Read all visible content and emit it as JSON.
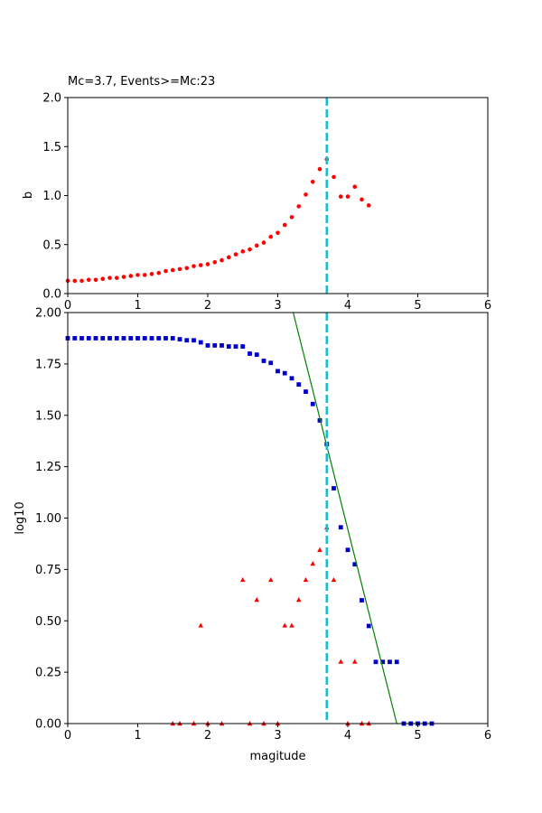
{
  "title": "Mc=3.7, Events>=Mc:23",
  "colors": {
    "b_points": "#ff0000",
    "cum_points": "#0000cc",
    "noncum_points": "#ff0000",
    "fit_line": "#008000",
    "mc_line": "#17becf"
  },
  "chart_data": [
    {
      "type": "scatter",
      "title": "Mc=3.7, Events>=Mc:23",
      "xlabel": "",
      "ylabel": "b",
      "xlim": [
        0,
        6
      ],
      "ylim": [
        0,
        2
      ],
      "xticks": [
        "0",
        "1",
        "2",
        "3",
        "4",
        "5",
        "6"
      ],
      "yticks": [
        "0.0",
        "0.5",
        "1.0",
        "1.5",
        "2.0"
      ],
      "mc": 3.7,
      "series": [
        {
          "marker": "circle",
          "x": [
            0.0,
            0.1,
            0.2,
            0.3,
            0.4,
            0.5,
            0.6,
            0.7,
            0.8,
            0.9,
            1.0,
            1.1,
            1.2,
            1.3,
            1.4,
            1.5,
            1.6,
            1.7,
            1.8,
            1.9,
            2.0,
            2.1,
            2.2,
            2.3,
            2.4,
            2.5,
            2.6,
            2.7,
            2.8,
            2.9,
            3.0,
            3.1,
            3.2,
            3.3,
            3.4,
            3.5,
            3.6,
            3.7,
            3.8,
            3.9,
            4.0,
            4.1,
            4.2,
            4.3
          ],
          "y": [
            0.13,
            0.13,
            0.13,
            0.14,
            0.14,
            0.15,
            0.16,
            0.16,
            0.17,
            0.18,
            0.19,
            0.19,
            0.2,
            0.21,
            0.23,
            0.24,
            0.25,
            0.26,
            0.28,
            0.29,
            0.3,
            0.32,
            0.34,
            0.37,
            0.4,
            0.43,
            0.45,
            0.49,
            0.52,
            0.58,
            0.62,
            0.7,
            0.78,
            0.89,
            1.01,
            1.14,
            1.27,
            1.37,
            1.19,
            0.99,
            0.99,
            1.09,
            0.96,
            0.9
          ]
        }
      ]
    },
    {
      "type": "scatter",
      "xlabel": "magitude",
      "ylabel": "log10",
      "xlim": [
        0,
        6
      ],
      "ylim": [
        0,
        2
      ],
      "xticks": [
        "0",
        "1",
        "2",
        "3",
        "4",
        "5",
        "6"
      ],
      "yticks": [
        "0.00",
        "0.25",
        "0.50",
        "0.75",
        "1.00",
        "1.25",
        "1.50",
        "1.75",
        "2.00"
      ],
      "mc": 3.7,
      "fit_line": {
        "x": [
          3.22,
          4.7
        ],
        "y": [
          2.0,
          0.0
        ]
      },
      "series": [
        {
          "marker": "square",
          "x": [
            0.0,
            0.1,
            0.2,
            0.3,
            0.4,
            0.5,
            0.6,
            0.7,
            0.8,
            0.9,
            1.0,
            1.1,
            1.2,
            1.3,
            1.4,
            1.5,
            1.6,
            1.7,
            1.8,
            1.9,
            2.0,
            2.1,
            2.2,
            2.3,
            2.4,
            2.5,
            2.6,
            2.7,
            2.8,
            2.9,
            3.0,
            3.1,
            3.2,
            3.3,
            3.4,
            3.5,
            3.6,
            3.7,
            3.8,
            3.9,
            4.0,
            4.1,
            4.2,
            4.3,
            4.4,
            4.5,
            4.6,
            4.7,
            4.8,
            4.9,
            5.0,
            5.1,
            5.2
          ],
          "y": [
            1.875,
            1.875,
            1.875,
            1.875,
            1.875,
            1.875,
            1.875,
            1.875,
            1.875,
            1.875,
            1.875,
            1.875,
            1.875,
            1.875,
            1.875,
            1.875,
            1.87,
            1.865,
            1.865,
            1.855,
            1.84,
            1.84,
            1.84,
            1.835,
            1.835,
            1.835,
            1.8,
            1.795,
            1.765,
            1.755,
            1.715,
            1.705,
            1.68,
            1.65,
            1.615,
            1.555,
            1.475,
            1.36,
            1.145,
            0.955,
            0.845,
            0.775,
            0.6,
            0.475,
            0.3,
            0.3,
            0.3,
            0.3,
            0.0,
            0.0,
            0.0,
            0.0,
            0.0
          ]
        },
        {
          "marker": "triangle",
          "x": [
            1.5,
            1.6,
            1.8,
            1.9,
            2.0,
            2.2,
            2.5,
            2.6,
            2.7,
            2.8,
            2.9,
            3.0,
            3.1,
            3.2,
            3.3,
            3.4,
            3.5,
            3.6,
            3.7,
            3.8,
            3.9,
            4.0,
            4.1,
            4.2,
            4.3
          ],
          "y": [
            0.0,
            0.0,
            0.0,
            0.477,
            0.0,
            0.0,
            0.699,
            0.0,
            0.602,
            0.0,
            0.699,
            0.0,
            0.477,
            0.477,
            0.602,
            0.699,
            0.778,
            0.845,
            0.954,
            0.699,
            0.301,
            0.0,
            0.301,
            0.0,
            0.0
          ]
        }
      ]
    }
  ]
}
